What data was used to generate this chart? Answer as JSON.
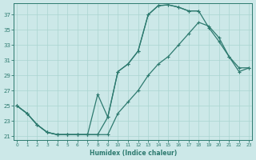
{
  "xlabel": "Humidex (Indice chaleur)",
  "bg_color": "#cce8e8",
  "line_color": "#2d7a6f",
  "grid_color": "#aad4d0",
  "xlim": [
    -0.3,
    23.3
  ],
  "ylim": [
    20.5,
    38.5
  ],
  "xtick_vals": [
    0,
    1,
    2,
    3,
    4,
    5,
    6,
    7,
    8,
    9,
    10,
    11,
    12,
    13,
    14,
    15,
    16,
    17,
    18,
    19,
    20,
    21,
    22,
    23
  ],
  "ytick_vals": [
    21,
    23,
    25,
    27,
    29,
    31,
    33,
    35,
    37
  ],
  "line1_x": [
    0,
    1,
    2,
    3,
    4,
    5,
    6,
    7,
    8,
    9,
    10,
    11,
    12,
    13,
    14,
    15,
    16,
    17,
    18
  ],
  "line1_y": [
    25,
    24,
    22.5,
    21.5,
    21.2,
    21.2,
    21.2,
    21.2,
    21.2,
    23.5,
    29.5,
    30.5,
    32.2,
    37.0,
    38.2,
    38.3,
    38.0,
    37.5,
    37.5
  ],
  "line2_x": [
    0,
    1,
    2,
    3,
    4,
    5,
    6,
    7,
    8,
    9,
    10,
    11,
    12,
    13,
    14,
    15,
    16,
    17,
    18,
    19,
    20,
    21,
    22,
    23
  ],
  "line2_y": [
    25,
    24,
    22.5,
    21.5,
    21.2,
    21.2,
    21.2,
    21.2,
    26.5,
    23.5,
    29.5,
    30.5,
    32.2,
    37.0,
    38.2,
    38.3,
    38.0,
    37.5,
    37.5,
    35.3,
    33.5,
    31.5,
    30.0,
    30.0
  ],
  "line3_x": [
    0,
    1,
    2,
    3,
    4,
    5,
    6,
    7,
    8,
    9,
    10,
    11,
    12,
    13,
    14,
    15,
    16,
    17,
    18,
    19,
    20,
    21,
    22,
    23
  ],
  "line3_y": [
    25,
    24,
    22.5,
    21.5,
    21.2,
    21.2,
    21.2,
    21.2,
    21.2,
    21.2,
    24.0,
    25.5,
    27.0,
    29.0,
    30.5,
    31.5,
    33.0,
    34.5,
    36.0,
    35.5,
    34.0,
    31.5,
    29.5,
    30.0
  ]
}
